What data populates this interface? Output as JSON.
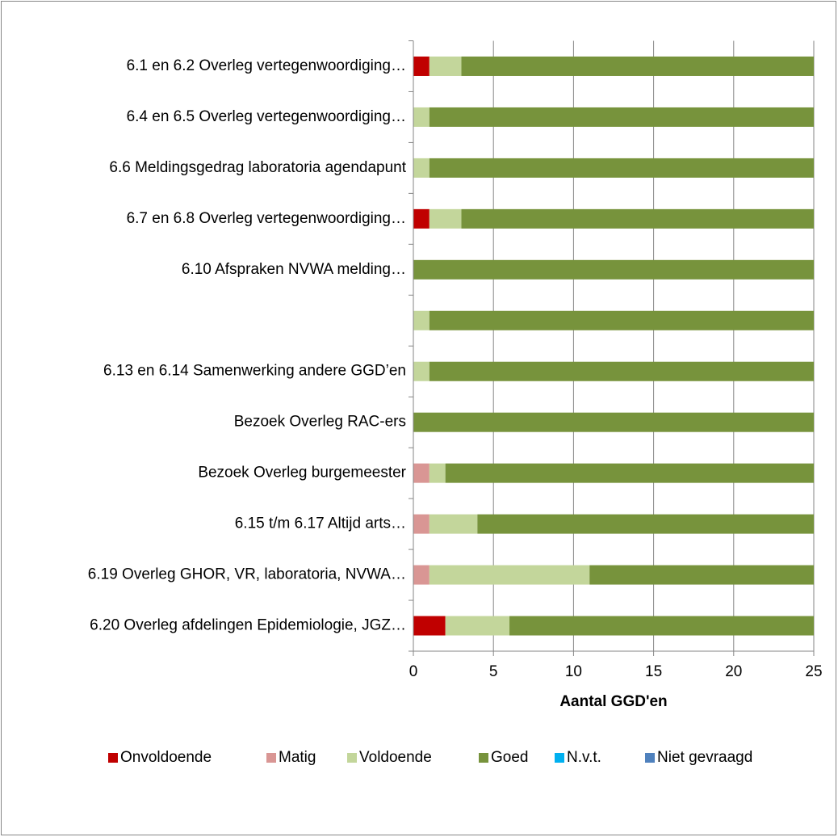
{
  "chart_data": {
    "type": "stacked_barh",
    "categories": [
      "6.1 en 6.2 Overleg vertegenwoordiging…",
      "6.4 en 6.5 Overleg vertegenwoordiging…",
      "6.6 Meldingsgedrag laboratoria agendapunt",
      "6.7 en 6.8 Overleg vertegenwoordiging…",
      "6.10 Afspraken NVWA melding…",
      null,
      "6.13 en 6.14 Samenwerking andere GGD’en",
      "Bezoek Overleg  RAC-ers",
      "Bezoek Overleg burgemeester",
      "6.15 t/m 6.17 Altijd arts…",
      "6.19 Overleg GHOR, VR, laboratoria, NVWA…",
      "6.20 Overleg afdelingen Epidemiologie, JGZ…"
    ],
    "series": [
      {
        "name": "Onvoldoende",
        "color": "#c00000",
        "values": [
          1,
          0,
          0,
          1,
          0,
          0,
          0,
          0,
          0,
          0,
          0,
          2
        ]
      },
      {
        "name": "Matig",
        "color": "#d99694",
        "values": [
          0,
          0,
          0,
          0,
          0,
          0,
          0,
          0,
          1,
          1,
          1,
          0
        ]
      },
      {
        "name": "Voldoende",
        "color": "#c3d69b",
        "values": [
          2,
          1,
          1,
          2,
          0,
          1,
          1,
          0,
          1,
          3,
          10,
          4
        ]
      },
      {
        "name": "Goed",
        "color": "#77933c",
        "values": [
          22,
          24,
          24,
          22,
          25,
          24,
          24,
          25,
          23,
          21,
          14,
          19
        ]
      },
      {
        "name": "N.v.t.",
        "color": "#00b0f0",
        "values": [
          0,
          0,
          0,
          0,
          0,
          0,
          0,
          0,
          0,
          0,
          0,
          0
        ]
      },
      {
        "name": "Niet gevraagd",
        "color": "#4f81bd",
        "values": [
          0,
          0,
          0,
          0,
          0,
          0,
          0,
          0,
          0,
          0,
          0,
          0
        ]
      }
    ],
    "xlabel": "Aantal GGD'en",
    "xlim": [
      0,
      25
    ],
    "xticks": [
      0,
      5,
      10,
      15,
      20,
      25
    ],
    "grid": true,
    "legend": "bottom"
  }
}
